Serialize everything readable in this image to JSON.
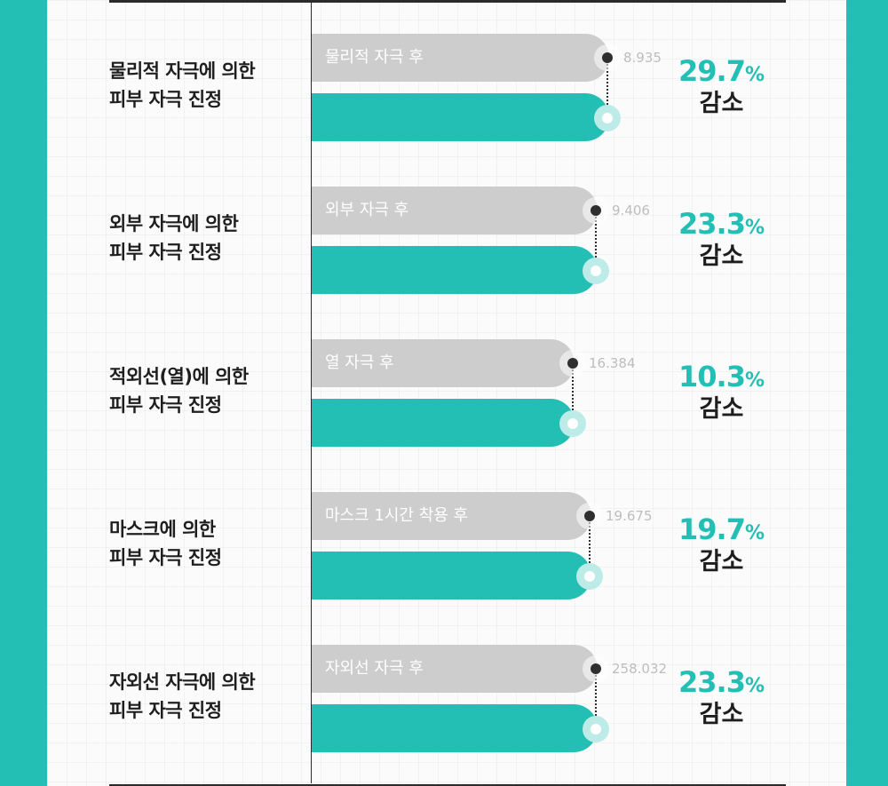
{
  "chart_data": {
    "type": "bar",
    "rows": [
      {
        "label_line1": "물리적 자극에 의한",
        "label_line2": "피부 자극 진정",
        "before_label": "물리적 자극 후",
        "before_value": "8.935",
        "reduction": "29.7",
        "reduction_unit": "%",
        "reduction_word": "감소"
      },
      {
        "label_line1": "외부 자극에 의한",
        "label_line2": "피부 자극 진정",
        "before_label": "외부 자극 후",
        "before_value": "9.406",
        "reduction": "23.3",
        "reduction_unit": "%",
        "reduction_word": "감소"
      },
      {
        "label_line1": "적외선(열)에 의한",
        "label_line2": "피부 자극 진정",
        "before_label": "열 자극 후",
        "before_value": "16.384",
        "reduction": "10.3",
        "reduction_unit": "%",
        "reduction_word": "감소"
      },
      {
        "label_line1": "마스크에 의한",
        "label_line2": "피부 자극 진정",
        "before_label": "마스크 1시간 착용 후",
        "before_value": "19.675",
        "reduction": "19.7",
        "reduction_unit": "%",
        "reduction_word": "감소"
      },
      {
        "label_line1": "자외선 자극에 의한",
        "label_line2": "피부 자극 진정",
        "before_label": "자외선 자극 후",
        "before_value": "258.032",
        "reduction": "23.3",
        "reduction_unit": "%",
        "reduction_word": "감소"
      }
    ]
  },
  "colors": {
    "accent": "#24bfb4",
    "before_bar": "#cdcdcd",
    "text": "#1e1e1e",
    "value_text": "#bdbdbd"
  }
}
